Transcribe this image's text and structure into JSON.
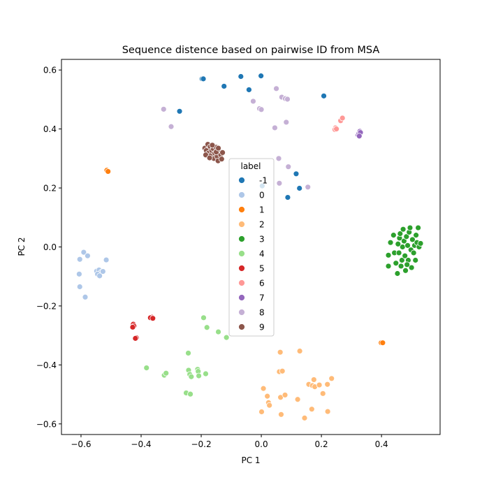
{
  "chart_data": {
    "type": "scatter",
    "title": "Sequence distence based on pairwise ID from MSA",
    "xlabel": "PC 1",
    "ylabel": "PC 2",
    "xlim": [
      -0.665,
      0.595
    ],
    "ylim": [
      -0.636,
      0.636
    ],
    "xticks": [
      -0.6,
      -0.4,
      -0.2,
      0.0,
      0.2,
      0.4
    ],
    "yticks": [
      -0.6,
      -0.4,
      -0.2,
      0.0,
      0.2,
      0.4,
      0.6
    ],
    "xtick_labels": [
      "−0.6",
      "−0.4",
      "−0.2",
      "0.0",
      "0.2",
      "0.4"
    ],
    "ytick_labels": [
      "−0.6",
      "−0.4",
      "−0.2",
      "0.0",
      "0.2",
      "0.4",
      "0.6"
    ],
    "grid": false,
    "legend": {
      "title": "label",
      "placement": "center"
    },
    "series": [
      {
        "name": "-1",
        "color": "#1f77b4",
        "points": [
          [
            -0.197,
            0.57
          ],
          [
            -0.193,
            0.57
          ],
          [
            -0.124,
            0.545
          ],
          [
            -0.068,
            0.578
          ],
          [
            -0.041,
            0.533
          ],
          [
            -0.001,
            0.58
          ],
          [
            0.208,
            0.512
          ],
          [
            -0.272,
            0.46
          ],
          [
            0.116,
            0.248
          ],
          [
            0.127,
            0.199
          ],
          [
            0.088,
            0.168
          ],
          [
            0.003,
            0.207
          ]
        ]
      },
      {
        "name": "0",
        "color": "#aec7e8",
        "points": [
          [
            -0.604,
            -0.042
          ],
          [
            -0.591,
            -0.018
          ],
          [
            -0.578,
            -0.03
          ],
          [
            -0.606,
            -0.092
          ],
          [
            -0.604,
            -0.135
          ],
          [
            -0.586,
            -0.17
          ],
          [
            -0.516,
            -0.044
          ],
          [
            -0.548,
            -0.082
          ],
          [
            -0.54,
            -0.078
          ],
          [
            -0.532,
            -0.085
          ],
          [
            -0.545,
            -0.092
          ],
          [
            -0.538,
            -0.098
          ],
          [
            -0.527,
            -0.083
          ]
        ]
      },
      {
        "name": "1",
        "color": "#ff7f0e",
        "points": [
          [
            -0.514,
            0.26
          ],
          [
            -0.51,
            0.256
          ],
          [
            0.399,
            -0.325
          ],
          [
            0.404,
            -0.325
          ]
        ]
      },
      {
        "name": "2",
        "color": "#ffbb78",
        "points": [
          [
            0.063,
            -0.357
          ],
          [
            0.128,
            -0.353
          ],
          [
            0.06,
            -0.423
          ],
          [
            0.07,
            -0.421
          ],
          [
            0.007,
            -0.48
          ],
          [
            0.02,
            -0.506
          ],
          [
            0.024,
            -0.528
          ],
          [
            0.027,
            -0.537
          ],
          [
            0.064,
            -0.51
          ],
          [
            0.079,
            -0.502
          ],
          [
            0.066,
            -0.568
          ],
          [
            0.001,
            -0.559
          ],
          [
            0.121,
            -0.517
          ],
          [
            0.158,
            -0.466
          ],
          [
            0.17,
            -0.47
          ],
          [
            0.175,
            -0.45
          ],
          [
            0.178,
            -0.474
          ],
          [
            0.193,
            -0.468
          ],
          [
            0.22,
            -0.466
          ],
          [
            0.234,
            -0.446
          ],
          [
            0.205,
            -0.497
          ],
          [
            0.168,
            -0.55
          ],
          [
            0.221,
            -0.558
          ],
          [
            0.144,
            -0.58
          ]
        ]
      },
      {
        "name": "3",
        "color": "#2ca02c",
        "points": [
          [
            0.423,
            -0.028
          ],
          [
            0.423,
            -0.065
          ],
          [
            0.43,
            0.015
          ],
          [
            0.443,
            -0.02
          ],
          [
            0.448,
            -0.055
          ],
          [
            0.453,
            -0.09
          ],
          [
            0.458,
            -0.02
          ],
          [
            0.46,
            0.03
          ],
          [
            0.462,
            0.045
          ],
          [
            0.468,
            -0.045
          ],
          [
            0.47,
            0.0
          ],
          [
            0.472,
            0.06
          ],
          [
            0.475,
            0.02
          ],
          [
            0.478,
            -0.03
          ],
          [
            0.48,
            -0.08
          ],
          [
            0.483,
            0.035
          ],
          [
            0.487,
            0.005
          ],
          [
            0.489,
            -0.045
          ],
          [
            0.492,
            0.05
          ],
          [
            0.495,
            0.065
          ],
          [
            0.498,
            -0.01
          ],
          [
            0.5,
            -0.07
          ],
          [
            0.503,
            0.025
          ],
          [
            0.507,
            -0.02
          ],
          [
            0.51,
            0.005
          ],
          [
            0.513,
            -0.045
          ],
          [
            0.515,
            0.04
          ],
          [
            0.518,
            0.015
          ],
          [
            0.522,
            0.065
          ],
          [
            0.525,
            0.0
          ],
          [
            0.53,
            0.012
          ],
          [
            0.455,
            0.01
          ],
          [
            0.44,
            0.04
          ],
          [
            0.465,
            -0.065
          ],
          [
            0.485,
            -0.06
          ]
        ]
      },
      {
        "name": "4",
        "color": "#98df8a",
        "points": [
          [
            -0.192,
            -0.24
          ],
          [
            -0.181,
            -0.273
          ],
          [
            -0.143,
            -0.288
          ],
          [
            -0.116,
            -0.307
          ],
          [
            -0.243,
            -0.36
          ],
          [
            -0.382,
            -0.41
          ],
          [
            -0.323,
            -0.435
          ],
          [
            -0.317,
            -0.428
          ],
          [
            -0.242,
            -0.418
          ],
          [
            -0.238,
            -0.432
          ],
          [
            -0.233,
            -0.44
          ],
          [
            -0.212,
            -0.415
          ],
          [
            -0.21,
            -0.422
          ],
          [
            -0.208,
            -0.437
          ],
          [
            -0.185,
            -0.43
          ],
          [
            -0.25,
            -0.495
          ],
          [
            -0.236,
            -0.499
          ]
        ]
      },
      {
        "name": "5",
        "color": "#d62728",
        "points": [
          [
            -0.426,
            -0.262
          ],
          [
            -0.424,
            -0.268
          ],
          [
            -0.428,
            -0.272
          ],
          [
            -0.365,
            -0.238
          ],
          [
            -0.369,
            -0.24
          ],
          [
            -0.361,
            -0.242
          ],
          [
            -0.416,
            -0.308
          ],
          [
            -0.419,
            -0.31
          ]
        ]
      },
      {
        "name": "6",
        "color": "#ff9896",
        "points": [
          [
            0.247,
            0.404
          ],
          [
            0.245,
            0.398
          ],
          [
            0.25,
            0.4
          ],
          [
            0.264,
            0.428
          ],
          [
            0.27,
            0.437
          ]
        ]
      },
      {
        "name": "7",
        "color": "#9467bd",
        "points": [
          [
            0.322,
            0.38
          ],
          [
            0.325,
            0.385
          ],
          [
            0.328,
            0.392
          ],
          [
            0.33,
            0.388
          ],
          [
            0.326,
            0.376
          ]
        ]
      },
      {
        "name": "8",
        "color": "#c5b0d5",
        "points": [
          [
            0.05,
            0.537
          ],
          [
            0.068,
            0.508
          ],
          [
            0.08,
            0.503
          ],
          [
            0.087,
            0.501
          ],
          [
            -0.027,
            0.494
          ],
          [
            -0.006,
            0.469
          ],
          [
            0.0,
            0.466
          ],
          [
            -0.325,
            0.467
          ],
          [
            -0.3,
            0.408
          ],
          [
            0.045,
            0.404
          ],
          [
            0.083,
            0.423
          ],
          [
            0.058,
            0.3
          ],
          [
            0.09,
            0.272
          ],
          [
            0.06,
            0.216
          ],
          [
            0.155,
            0.203
          ]
        ]
      },
      {
        "name": "9",
        "color": "#8c564b",
        "points": [
          [
            -0.188,
            0.335
          ],
          [
            -0.183,
            0.327
          ],
          [
            -0.178,
            0.348
          ],
          [
            -0.176,
            0.318
          ],
          [
            -0.17,
            0.34
          ],
          [
            -0.168,
            0.31
          ],
          [
            -0.165,
            0.327
          ],
          [
            -0.16,
            0.333
          ],
          [
            -0.158,
            0.3
          ],
          [
            -0.155,
            0.318
          ],
          [
            -0.15,
            0.338
          ],
          [
            -0.147,
            0.307
          ],
          [
            -0.144,
            0.292
          ],
          [
            -0.14,
            0.325
          ],
          [
            -0.135,
            0.312
          ],
          [
            -0.132,
            0.298
          ],
          [
            -0.129,
            0.32
          ],
          [
            -0.185,
            0.312
          ],
          [
            -0.172,
            0.302
          ],
          [
            -0.163,
            0.345
          ],
          [
            -0.15,
            0.322
          ],
          [
            -0.143,
            0.335
          ]
        ]
      }
    ]
  }
}
